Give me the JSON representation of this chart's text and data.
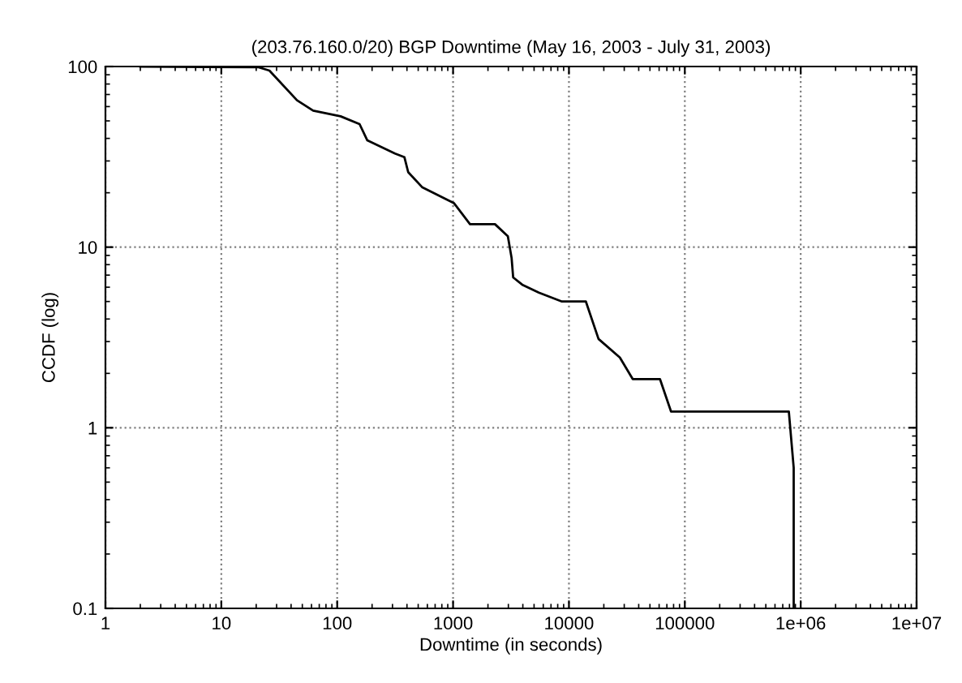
{
  "chart_data": {
    "type": "line",
    "title": "(203.76.160.0/20) BGP Downtime (May 16, 2003 - July 31, 2003)",
    "xlabel": "Downtime (in seconds)",
    "ylabel": "CCDF (log)",
    "log": "xy",
    "grid": true,
    "marker": "none",
    "line_style": "solid",
    "xlim": [
      1,
      10000000
    ],
    "ylim": [
      0.1,
      100
    ],
    "xticks": [
      1,
      10,
      100,
      1000,
      10000,
      100000,
      {
        "value": 1000000,
        "label": "1e+06"
      },
      {
        "value": 10000000,
        "label": "1e+07"
      }
    ],
    "yticks": [
      0.1,
      1,
      10,
      100
    ],
    "series": [
      {
        "color": "#000000",
        "x": [
          2,
          21,
          26,
          45,
          62,
          107,
          156,
          182,
          315,
          380,
          410,
          540,
          1020,
          1400,
          2300,
          2970,
          3200,
          3300,
          3950,
          5500,
          8700,
          14000,
          18000,
          27500,
          35500,
          61000,
          76000,
          790000,
          870000,
          870000
        ],
        "values": [
          100,
          99,
          95,
          65,
          57,
          53,
          48,
          39,
          33,
          31.5,
          26,
          21.5,
          17.5,
          13.4,
          13.4,
          11.5,
          8.7,
          6.8,
          6.2,
          5.6,
          5.0,
          5.0,
          3.1,
          2.45,
          1.86,
          1.86,
          1.23,
          1.23,
          0.6,
          0.1
        ]
      }
    ]
  }
}
